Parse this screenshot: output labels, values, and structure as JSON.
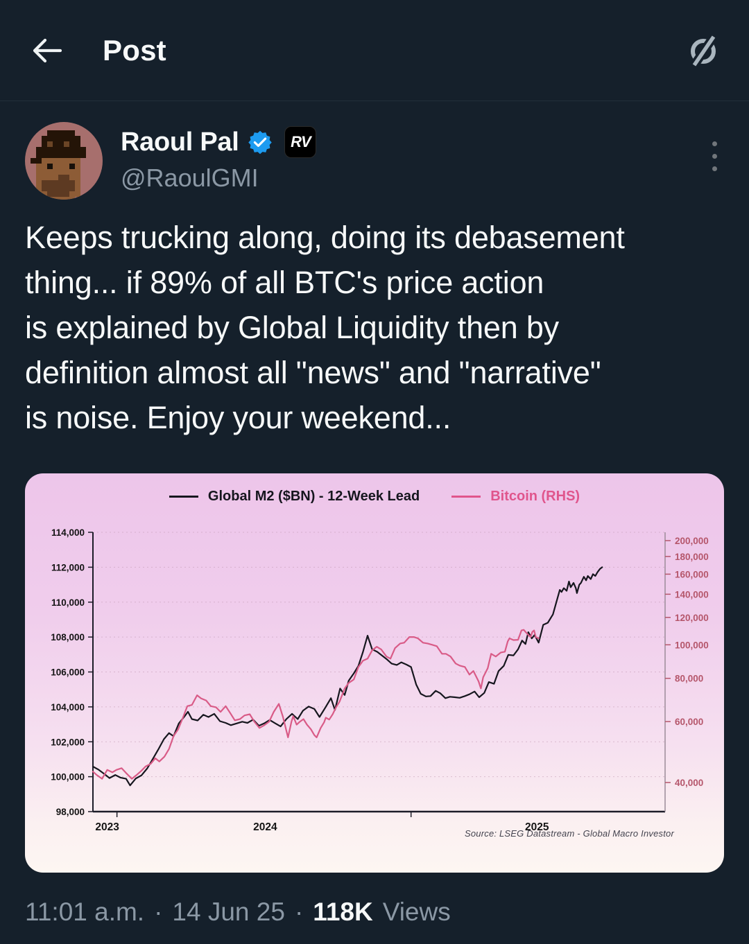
{
  "header": {
    "title": "Post"
  },
  "post": {
    "author": {
      "name": "Raoul Pal",
      "handle": "@RaoulGMI",
      "rv_badge": "RV"
    },
    "body": "Keeps trucking along, doing its debasement\nthing... if 89% of all BTC's price action\nis explained by Global Liquidity then by\ndefinition almost all \"news\" and \"narrative\"\nis noise. Enjoy your weekend...",
    "footer": {
      "time": "11:01 a.m.",
      "separator": "·",
      "date": "14 Jun 25",
      "views_count": "118K",
      "views_label": "Views"
    }
  },
  "colors": {
    "page_bg": "#15202b",
    "text_primary": "#f7f9f9",
    "text_secondary": "#8b98a5",
    "accent_blue": "#1d9bf0",
    "m2_line": "#16161e",
    "btc_line": "#d95b87",
    "right_axis_text": "#b5566b",
    "axis_text": "#141414",
    "grid": "#c29ab4"
  },
  "chart_data": {
    "type": "line",
    "legend": [
      {
        "label": "Global M2 ($BN) - 12-Week Lead",
        "color": "#16161e"
      },
      {
        "label": "Bitcoin (RHS)",
        "color": "#e0558c"
      }
    ],
    "left_axis": {
      "scale": "linear",
      "min": 98000,
      "max": 114000,
      "tick_labels": [
        "114,000",
        "112,000",
        "110,000",
        "108,000",
        "106,000",
        "104,000",
        "102,000",
        "100,000",
        "98,000"
      ],
      "tick_values": [
        114000,
        112000,
        110000,
        108000,
        106000,
        104000,
        102000,
        100000,
        98000
      ]
    },
    "right_axis": {
      "scale": "log",
      "min": 40000,
      "max": 200000,
      "tick_labels": [
        "200,000",
        "180,000",
        "160,000",
        "140,000",
        "120,000",
        "100,000",
        "80,000",
        "60,000",
        "40,000"
      ],
      "tick_values": [
        200000,
        180000,
        160000,
        140000,
        120000,
        100000,
        80000,
        60000,
        40000
      ]
    },
    "x_axis": {
      "labels": [
        "2023",
        "2024",
        "2025"
      ],
      "label_x": [
        0.025,
        0.301,
        0.776
      ],
      "tick_x": [
        0.042,
        0.556
      ]
    },
    "source": "Source: LSEG Datastream - Global Macro Investor",
    "series": [
      {
        "name": "Global M2 ($BN) - 12-Week Lead",
        "axis": "left",
        "color": "#16161e",
        "points": [
          [
            0.0,
            100580
          ],
          [
            0.01,
            100400
          ],
          [
            0.019,
            100180
          ],
          [
            0.029,
            99920
          ],
          [
            0.039,
            100100
          ],
          [
            0.048,
            99950
          ],
          [
            0.058,
            99880
          ],
          [
            0.065,
            99500
          ],
          [
            0.075,
            99900
          ],
          [
            0.085,
            100080
          ],
          [
            0.095,
            100480
          ],
          [
            0.104,
            100980
          ],
          [
            0.114,
            101550
          ],
          [
            0.124,
            102150
          ],
          [
            0.133,
            102500
          ],
          [
            0.141,
            102320
          ],
          [
            0.15,
            103050
          ],
          [
            0.16,
            103450
          ],
          [
            0.166,
            103720
          ],
          [
            0.173,
            103300
          ],
          [
            0.183,
            103220
          ],
          [
            0.193,
            103550
          ],
          [
            0.202,
            103420
          ],
          [
            0.212,
            103600
          ],
          [
            0.222,
            103180
          ],
          [
            0.232,
            103080
          ],
          [
            0.241,
            102950
          ],
          [
            0.251,
            103050
          ],
          [
            0.261,
            103150
          ],
          [
            0.27,
            103080
          ],
          [
            0.28,
            103270
          ],
          [
            0.29,
            102920
          ],
          [
            0.299,
            103050
          ],
          [
            0.309,
            103250
          ],
          [
            0.319,
            103050
          ],
          [
            0.328,
            102880
          ],
          [
            0.338,
            103300
          ],
          [
            0.348,
            103600
          ],
          [
            0.358,
            103300
          ],
          [
            0.367,
            103780
          ],
          [
            0.377,
            104020
          ],
          [
            0.387,
            103880
          ],
          [
            0.396,
            103420
          ],
          [
            0.406,
            103950
          ],
          [
            0.416,
            104500
          ],
          [
            0.423,
            103820
          ],
          [
            0.432,
            105050
          ],
          [
            0.44,
            104680
          ],
          [
            0.447,
            105500
          ],
          [
            0.456,
            105920
          ],
          [
            0.464,
            106350
          ],
          [
            0.472,
            107150
          ],
          [
            0.48,
            108080
          ],
          [
            0.488,
            107300
          ],
          [
            0.497,
            107150
          ],
          [
            0.505,
            106950
          ],
          [
            0.514,
            106720
          ],
          [
            0.522,
            106480
          ],
          [
            0.531,
            106400
          ],
          [
            0.539,
            106550
          ],
          [
            0.548,
            106420
          ],
          [
            0.556,
            106280
          ],
          [
            0.565,
            105280
          ],
          [
            0.573,
            104750
          ],
          [
            0.582,
            104600
          ],
          [
            0.59,
            104620
          ],
          [
            0.599,
            104920
          ],
          [
            0.607,
            104780
          ],
          [
            0.616,
            104500
          ],
          [
            0.624,
            104580
          ],
          [
            0.633,
            104550
          ],
          [
            0.641,
            104520
          ],
          [
            0.65,
            104620
          ],
          [
            0.658,
            104720
          ],
          [
            0.667,
            104880
          ],
          [
            0.675,
            104550
          ],
          [
            0.684,
            104800
          ],
          [
            0.692,
            105420
          ],
          [
            0.701,
            105320
          ],
          [
            0.709,
            106050
          ],
          [
            0.718,
            106350
          ],
          [
            0.726,
            106980
          ],
          [
            0.735,
            106950
          ],
          [
            0.743,
            107300
          ],
          [
            0.75,
            107800
          ],
          [
            0.756,
            107600
          ],
          [
            0.761,
            108280
          ],
          [
            0.767,
            107920
          ],
          [
            0.772,
            108120
          ],
          [
            0.779,
            107680
          ],
          [
            0.787,
            108700
          ],
          [
            0.795,
            108820
          ],
          [
            0.804,
            109300
          ],
          [
            0.811,
            110120
          ],
          [
            0.816,
            110700
          ],
          [
            0.819,
            110580
          ],
          [
            0.823,
            110800
          ],
          [
            0.828,
            110650
          ],
          [
            0.832,
            111180
          ],
          [
            0.835,
            110850
          ],
          [
            0.84,
            111100
          ],
          [
            0.844,
            110800
          ],
          [
            0.846,
            110520
          ],
          [
            0.85,
            111000
          ],
          [
            0.853,
            111100
          ],
          [
            0.858,
            111450
          ],
          [
            0.862,
            111250
          ],
          [
            0.865,
            111500
          ],
          [
            0.87,
            111320
          ],
          [
            0.874,
            111600
          ],
          [
            0.878,
            111500
          ],
          [
            0.882,
            111720
          ],
          [
            0.886,
            111900
          ],
          [
            0.89,
            112000
          ]
        ]
      },
      {
        "name": "Bitcoin",
        "axis": "right",
        "color": "#d95b87",
        "points": [
          [
            0.0,
            43000
          ],
          [
            0.007,
            42000
          ],
          [
            0.016,
            41000
          ],
          [
            0.025,
            43500
          ],
          [
            0.034,
            42800
          ],
          [
            0.041,
            43500
          ],
          [
            0.05,
            44000
          ],
          [
            0.058,
            42600
          ],
          [
            0.068,
            41000
          ],
          [
            0.076,
            42000
          ],
          [
            0.085,
            43300
          ],
          [
            0.092,
            44500
          ],
          [
            0.101,
            45300
          ],
          [
            0.109,
            47000
          ],
          [
            0.116,
            46000
          ],
          [
            0.125,
            47500
          ],
          [
            0.133,
            50000
          ],
          [
            0.141,
            54500
          ],
          [
            0.149,
            57000
          ],
          [
            0.158,
            62000
          ],
          [
            0.165,
            66500
          ],
          [
            0.173,
            67000
          ],
          [
            0.182,
            71500
          ],
          [
            0.189,
            70000
          ],
          [
            0.198,
            69000
          ],
          [
            0.206,
            66500
          ],
          [
            0.215,
            66000
          ],
          [
            0.223,
            64000
          ],
          [
            0.232,
            66500
          ],
          [
            0.24,
            63500
          ],
          [
            0.248,
            60500
          ],
          [
            0.257,
            61000
          ],
          [
            0.265,
            62500
          ],
          [
            0.274,
            63000
          ],
          [
            0.282,
            60000
          ],
          [
            0.291,
            57500
          ],
          [
            0.299,
            58500
          ],
          [
            0.308,
            60000
          ],
          [
            0.316,
            64000
          ],
          [
            0.325,
            67500
          ],
          [
            0.332,
            62000
          ],
          [
            0.341,
            54000
          ],
          [
            0.347,
            60000
          ],
          [
            0.35,
            62200
          ],
          [
            0.356,
            58800
          ],
          [
            0.362,
            60000
          ],
          [
            0.368,
            61000
          ],
          [
            0.374,
            58800
          ],
          [
            0.381,
            57000
          ],
          [
            0.387,
            54800
          ],
          [
            0.391,
            54000
          ],
          [
            0.398,
            57500
          ],
          [
            0.404,
            59700
          ],
          [
            0.407,
            61600
          ],
          [
            0.413,
            60800
          ],
          [
            0.419,
            63000
          ],
          [
            0.425,
            66000
          ],
          [
            0.431,
            68500
          ],
          [
            0.44,
            74800
          ],
          [
            0.447,
            77600
          ],
          [
            0.456,
            79400
          ],
          [
            0.464,
            86300
          ],
          [
            0.472,
            90000
          ],
          [
            0.48,
            91200
          ],
          [
            0.488,
            96400
          ],
          [
            0.496,
            98700
          ],
          [
            0.504,
            96900
          ],
          [
            0.513,
            92500
          ],
          [
            0.52,
            91200
          ],
          [
            0.528,
            97800
          ],
          [
            0.537,
            100900
          ],
          [
            0.544,
            101400
          ],
          [
            0.553,
            105300
          ],
          [
            0.561,
            105300
          ],
          [
            0.568,
            104400
          ],
          [
            0.577,
            101400
          ],
          [
            0.585,
            100900
          ],
          [
            0.593,
            100000
          ],
          [
            0.601,
            99100
          ],
          [
            0.61,
            94200
          ],
          [
            0.617,
            94200
          ],
          [
            0.625,
            92500
          ],
          [
            0.634,
            88300
          ],
          [
            0.641,
            87100
          ],
          [
            0.65,
            86300
          ],
          [
            0.658,
            82000
          ],
          [
            0.665,
            84000
          ],
          [
            0.674,
            78400
          ],
          [
            0.678,
            74800
          ],
          [
            0.682,
            80600
          ],
          [
            0.69,
            85600
          ],
          [
            0.696,
            94200
          ],
          [
            0.704,
            92500
          ],
          [
            0.713,
            95000
          ],
          [
            0.72,
            95500
          ],
          [
            0.725,
            102300
          ],
          [
            0.728,
            104400
          ],
          [
            0.735,
            103200
          ],
          [
            0.743,
            103400
          ],
          [
            0.749,
            110000
          ],
          [
            0.753,
            110500
          ],
          [
            0.756,
            109000
          ],
          [
            0.761,
            106800
          ],
          [
            0.765,
            105300
          ],
          [
            0.768,
            109000
          ],
          [
            0.771,
            110000
          ],
          [
            0.774,
            105300
          ],
          [
            0.779,
            104400
          ]
        ]
      }
    ]
  }
}
